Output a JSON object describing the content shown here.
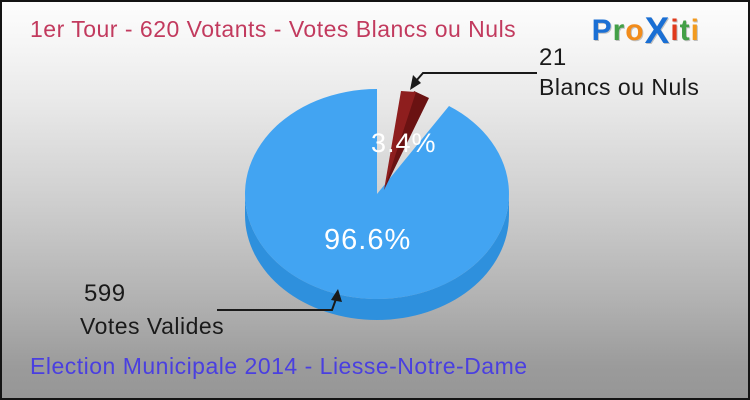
{
  "header": {
    "title": "1er Tour - 620 Votants - Votes Blancs ou Nuls"
  },
  "logo": {
    "name": "Proxiti",
    "letters": [
      {
        "ch": "P",
        "color": "#1a6fd4"
      },
      {
        "ch": "r",
        "color": "#43a047"
      },
      {
        "ch": "o",
        "color": "#f28c1b"
      },
      {
        "ch": "X",
        "color": "#1a6fd4",
        "big": true
      },
      {
        "ch": "i",
        "color": "#e0391b"
      },
      {
        "ch": "t",
        "color": "#43a047"
      },
      {
        "ch": "i",
        "color": "#f29a1e"
      }
    ]
  },
  "chart_data": {
    "type": "pie",
    "style": "3d-exploded",
    "title": "1er Tour - 620 Votants - Votes Blancs ou Nuls",
    "total_votants": 620,
    "slices": [
      {
        "label": "Votes Valides",
        "value": 599,
        "percent": "96.6%",
        "color": "#42a4f2",
        "side_color": "#2e90dd",
        "exploded": false
      },
      {
        "label": "Blancs ou Nuls",
        "value": 21,
        "percent": "3.4%",
        "color": "#8e1e1e",
        "side_color": "#6a1212",
        "exploded": true
      }
    ],
    "legend_position": "callouts",
    "background": "gray-gradient"
  },
  "footer": {
    "text": "Election Municipale 2014 - Liesse-Notre-Dame"
  },
  "colors": {
    "title": "#c23a5e",
    "footer": "#4a3fe0",
    "callout_text": "#1a1a1a",
    "callout_line": "#1a1a1a",
    "percent_text": "#ffffff"
  }
}
